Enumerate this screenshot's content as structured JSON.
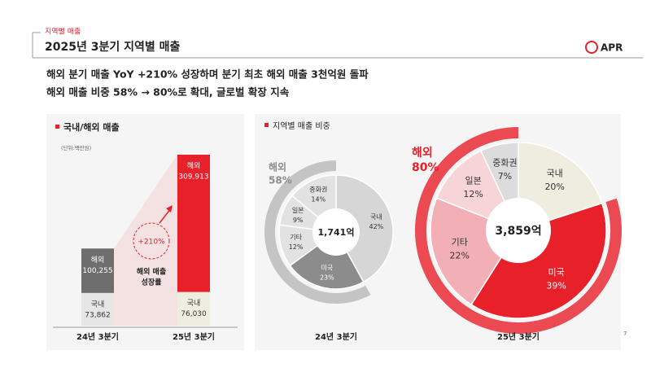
{
  "header": {
    "section": "지역별 매출",
    "title": "2025년 3분기 지역별 매출",
    "logo": "APR"
  },
  "headlines": [
    "해외 분기 매출 YoY +210% 성장하며 분기 최초 해외 매출 3천억원 돌파",
    "해외 매출 비중 58% → 80%로 확대, 글로벌 확장 지속"
  ],
  "page_number": "7",
  "chart_data": [
    {
      "type": "stacked_bar",
      "title": "국내/해외 매출",
      "subtitle": "(단위:백만원)",
      "categories": [
        "24년 3분기",
        "25년 3분기"
      ],
      "series": [
        {
          "name": "국내",
          "colors": [
            "#e6e6e6",
            "#efece0"
          ],
          "values": [
            73862,
            76030
          ],
          "value_labels": [
            "73,862",
            "76,030"
          ]
        },
        {
          "name": "해외",
          "colors": [
            "#6e6e6e",
            "#e8202a"
          ],
          "values": [
            100255,
            309913
          ],
          "value_labels": [
            "100,255",
            "309,913"
          ]
        }
      ],
      "annotation": {
        "text": "+210%",
        "caption": [
          "해외 매출",
          "성장률"
        ]
      }
    },
    {
      "type": "donut",
      "title": "지역별 매출 비중",
      "x_label": "24년 3분기",
      "center_label": "1,741억",
      "categories": [
        "국내",
        "미국",
        "기타",
        "일본",
        "중화권"
      ],
      "values": [
        42,
        23,
        12,
        9,
        14
      ],
      "value_labels": [
        "42%",
        "23%",
        "12%",
        "9%",
        "14%"
      ],
      "colors": [
        "#d6d6d6",
        "#8c8c8c",
        "#e2e2e2",
        "#e2e2e2",
        "#e2e2e2"
      ],
      "ring": {
        "name": "해외",
        "value": 58,
        "value_label": "58%",
        "color": "#c4c4c4"
      }
    },
    {
      "type": "donut",
      "x_label": "25년 3분기",
      "center_label": "3,859억",
      "categories": [
        "국내",
        "미국",
        "기타",
        "일본",
        "중화권"
      ],
      "values": [
        20,
        39,
        22,
        12,
        7
      ],
      "value_labels": [
        "20%",
        "39%",
        "22%",
        "12%",
        "7%"
      ],
      "colors": [
        "#efece0",
        "#e8202a",
        "#f2b0b6",
        "#f6d4d7",
        "#dcdcdc"
      ],
      "ring": {
        "name": "해외",
        "value": 80,
        "value_label": "80%",
        "color": "#ec4a52"
      }
    }
  ]
}
